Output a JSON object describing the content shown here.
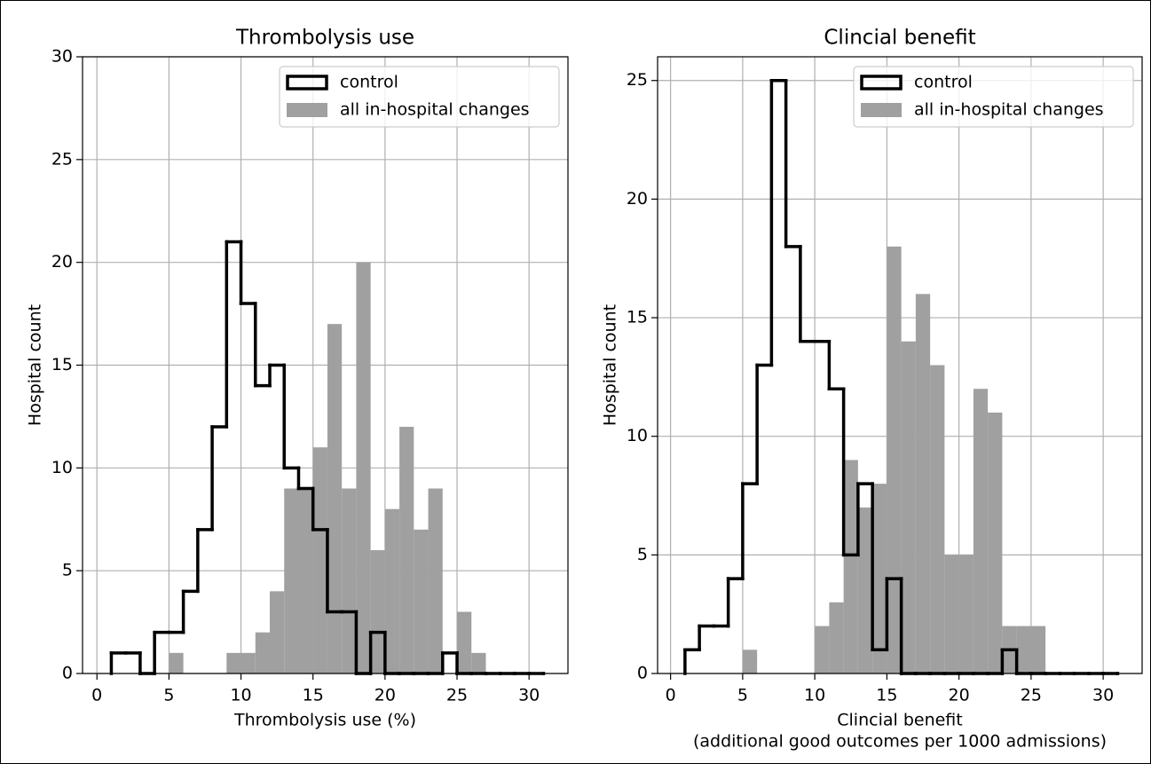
{
  "chart_data": [
    {
      "type": "histogram",
      "title": "Thrombolysis use",
      "xlabel": [
        "Thrombolysis use (%)"
      ],
      "ylabel": "Hospital count",
      "bins": [
        1,
        2,
        3,
        4,
        5,
        6,
        7,
        8,
        9,
        10,
        11,
        12,
        13,
        14,
        15,
        16,
        17,
        18,
        19,
        20,
        21,
        22,
        23,
        24,
        25,
        26,
        27,
        28,
        29,
        30,
        31
      ],
      "series": [
        {
          "name": "control",
          "color": "#000000",
          "histtype": "step",
          "values": [
            1,
            1,
            0,
            2,
            2,
            4,
            7,
            12,
            21,
            18,
            14,
            15,
            10,
            9,
            7,
            3,
            3,
            0,
            2,
            0,
            0,
            0,
            0,
            1,
            0,
            0,
            0,
            0,
            0,
            0
          ]
        },
        {
          "name": "all in-hospital changes",
          "color": "#a0a0a0",
          "histtype": "bar",
          "values": [
            0,
            0,
            0,
            0,
            1,
            0,
            0,
            0,
            1,
            1,
            2,
            4,
            9,
            9,
            11,
            17,
            9,
            20,
            6,
            8,
            12,
            7,
            9,
            0,
            3,
            1,
            0,
            0,
            0,
            0
          ]
        }
      ],
      "xlim": [
        -1,
        32.7
      ],
      "xticks": [
        0,
        5,
        10,
        15,
        20,
        25,
        30
      ],
      "ylim": [
        0,
        30
      ],
      "yticks": [
        0,
        5,
        10,
        15,
        20,
        25,
        30
      ],
      "grid": true,
      "legend": "upper right"
    },
    {
      "type": "histogram",
      "title": "Clincial benefit",
      "xlabel": [
        "Clincial benefit",
        "(additional good outcomes per 1000 admissions)"
      ],
      "ylabel": "Hospital count",
      "bins": [
        1,
        2,
        3,
        4,
        5,
        6,
        7,
        8,
        9,
        10,
        11,
        12,
        13,
        14,
        15,
        16,
        17,
        18,
        19,
        20,
        21,
        22,
        23,
        24,
        25,
        26,
        27,
        28,
        29,
        30,
        31
      ],
      "series": [
        {
          "name": "control",
          "color": "#000000",
          "histtype": "step",
          "values": [
            1,
            2,
            2,
            4,
            8,
            13,
            25,
            18,
            14,
            14,
            12,
            5,
            8,
            1,
            4,
            0,
            0,
            0,
            0,
            0,
            0,
            0,
            1,
            0,
            0,
            0,
            0,
            0,
            0,
            0
          ]
        },
        {
          "name": "all in-hospital changes",
          "color": "#a0a0a0",
          "histtype": "bar",
          "values": [
            0,
            0,
            0,
            0,
            1,
            0,
            0,
            0,
            0,
            2,
            3,
            9,
            7,
            8,
            18,
            14,
            16,
            13,
            5,
            5,
            12,
            11,
            2,
            2,
            2,
            0,
            0,
            0,
            0,
            0
          ]
        }
      ],
      "xlim": [
        -0.9,
        32.7
      ],
      "xticks": [
        0,
        5,
        10,
        15,
        20,
        25,
        30
      ],
      "ylim": [
        0,
        26
      ],
      "yticks": [
        0,
        5,
        10,
        15,
        20,
        25
      ],
      "grid": true,
      "legend": "upper right"
    }
  ]
}
